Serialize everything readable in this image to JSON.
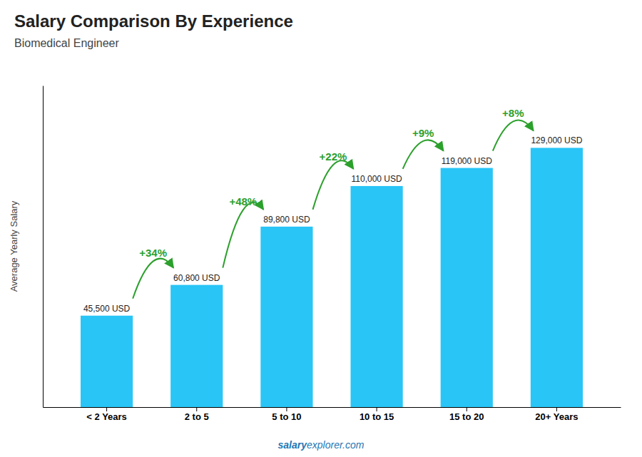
{
  "chart_data": {
    "type": "bar",
    "title": "Salary Comparison By Experience",
    "subtitle": "Biomedical Engineer",
    "categories": [
      "< 2 Years",
      "2 to 5",
      "5 to 10",
      "10 to 15",
      "15 to 20",
      "20+ Years"
    ],
    "values": [
      45500,
      60800,
      89800,
      110000,
      119000,
      129000
    ],
    "value_labels": [
      "45,500 USD",
      "60,800 USD",
      "89,800 USD",
      "110,000 USD",
      "119,000 USD",
      "129,000 USD"
    ],
    "data_labels": true,
    "annotations": [
      "+34%",
      "+48%",
      "+22%",
      "+9%",
      "+8%"
    ],
    "ylabel": "Average Yearly Salary",
    "watermark": [
      "salary",
      "explorer.com"
    ],
    "color": "#29c5f6",
    "ylim": [
      0,
      160000
    ],
    "tick_labels": "x",
    "grid": false
  }
}
